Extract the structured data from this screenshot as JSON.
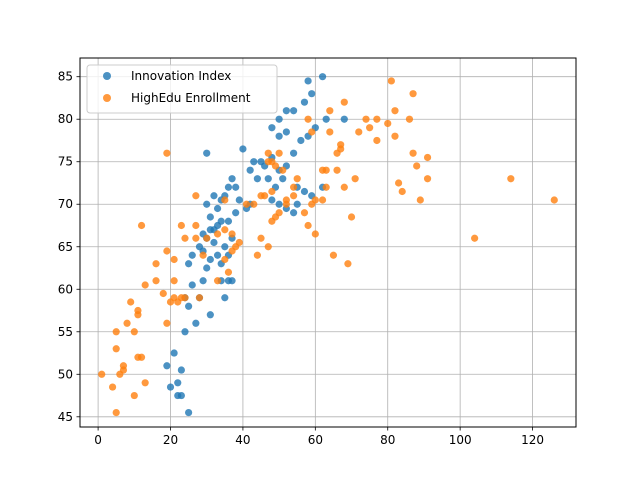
{
  "chart_data": {
    "type": "scatter",
    "title": "",
    "xlabel": "",
    "ylabel": "",
    "xlim": [
      -5,
      132
    ],
    "ylim": [
      43.8,
      87.2
    ],
    "xticks": [
      0,
      20,
      40,
      60,
      80,
      100,
      120
    ],
    "yticks": [
      45,
      50,
      55,
      60,
      65,
      70,
      75,
      80,
      85
    ],
    "grid": true,
    "legend_position": "top-left",
    "series": [
      {
        "name": "Innovation Index",
        "color": "#1f77b4",
        "points": [
          [
            20,
            48.5
          ],
          [
            21,
            52.5
          ],
          [
            19,
            51
          ],
          [
            23,
            50.5
          ],
          [
            22,
            47.5
          ],
          [
            25,
            45.5
          ],
          [
            24,
            55
          ],
          [
            27,
            56
          ],
          [
            25,
            58
          ],
          [
            24,
            59
          ],
          [
            26,
            60.5
          ],
          [
            31,
            57
          ],
          [
            29,
            61
          ],
          [
            28,
            59
          ],
          [
            30,
            62.5
          ],
          [
            31,
            63.5
          ],
          [
            33,
            64
          ],
          [
            35,
            59
          ],
          [
            34,
            61
          ],
          [
            34,
            63
          ],
          [
            36,
            61
          ],
          [
            37,
            61
          ],
          [
            26,
            64
          ],
          [
            25,
            63
          ],
          [
            29,
            64.5
          ],
          [
            28,
            65
          ],
          [
            32,
            65.5
          ],
          [
            36,
            64
          ],
          [
            37,
            66
          ],
          [
            35,
            65
          ],
          [
            29,
            66.5
          ],
          [
            30,
            66
          ],
          [
            31,
            67
          ],
          [
            32,
            67
          ],
          [
            33,
            67.5
          ],
          [
            34,
            68
          ],
          [
            36,
            68
          ],
          [
            38,
            69
          ],
          [
            33,
            69.5
          ],
          [
            30,
            70
          ],
          [
            31,
            68.5
          ],
          [
            32,
            71
          ],
          [
            34,
            70.5
          ],
          [
            35,
            71
          ],
          [
            36,
            72
          ],
          [
            37,
            73
          ],
          [
            38,
            72
          ],
          [
            39,
            70.5
          ],
          [
            41,
            69.5
          ],
          [
            42,
            70
          ],
          [
            40,
            76.5
          ],
          [
            42,
            74
          ],
          [
            43,
            75
          ],
          [
            45,
            75
          ],
          [
            44,
            73
          ],
          [
            46,
            74.5
          ],
          [
            48,
            75.5
          ],
          [
            50,
            74
          ],
          [
            47,
            73
          ],
          [
            49,
            72
          ],
          [
            51,
            73
          ],
          [
            52,
            74.5
          ],
          [
            55,
            72
          ],
          [
            57,
            71.5
          ],
          [
            59,
            71
          ],
          [
            62,
            72
          ],
          [
            50,
            70
          ],
          [
            52,
            69.5
          ],
          [
            54,
            69
          ],
          [
            55,
            70
          ],
          [
            30,
            76
          ],
          [
            48,
            70.5
          ],
          [
            50,
            78
          ],
          [
            48,
            79
          ],
          [
            52,
            78.5
          ],
          [
            54,
            76
          ],
          [
            56,
            77.5
          ],
          [
            58,
            78
          ],
          [
            60,
            79
          ],
          [
            63,
            80
          ],
          [
            50,
            80
          ],
          [
            52,
            81
          ],
          [
            54,
            81
          ],
          [
            57,
            82
          ],
          [
            59,
            83
          ],
          [
            62,
            85
          ],
          [
            58,
            84.5
          ],
          [
            68,
            80
          ],
          [
            22,
            49
          ],
          [
            23,
            47.5
          ]
        ]
      },
      {
        "name": "HighEdu Enrollment",
        "color": "#ff7f0e",
        "points": [
          [
            1,
            50
          ],
          [
            4,
            48.5
          ],
          [
            5,
            45.5
          ],
          [
            5,
            53
          ],
          [
            5,
            55
          ],
          [
            6,
            50
          ],
          [
            7,
            51
          ],
          [
            7,
            50.5
          ],
          [
            8,
            56
          ],
          [
            9,
            58.5
          ],
          [
            10,
            47.5
          ],
          [
            10,
            55
          ],
          [
            11,
            57
          ],
          [
            11,
            57.5
          ],
          [
            11,
            52
          ],
          [
            12,
            52
          ],
          [
            13,
            49
          ],
          [
            13,
            60.5
          ],
          [
            16,
            61
          ],
          [
            16,
            63
          ],
          [
            18,
            59.5
          ],
          [
            19,
            56
          ],
          [
            19,
            64.5
          ],
          [
            20,
            58.5
          ],
          [
            21,
            61
          ],
          [
            21,
            63.5
          ],
          [
            21,
            59
          ],
          [
            22,
            58.5
          ],
          [
            23,
            59
          ],
          [
            24,
            59
          ],
          [
            27,
            67.5
          ],
          [
            23,
            67.5
          ],
          [
            24,
            66
          ],
          [
            28,
            59
          ],
          [
            29,
            64
          ],
          [
            33,
            61
          ],
          [
            35,
            63.5
          ],
          [
            35,
            67
          ],
          [
            36,
            62
          ],
          [
            37,
            64.5
          ],
          [
            38,
            65
          ],
          [
            39,
            65.5
          ],
          [
            27,
            71
          ],
          [
            35,
            70.5
          ],
          [
            37,
            66.5
          ],
          [
            30,
            66
          ],
          [
            33,
            66.5
          ],
          [
            19,
            76
          ],
          [
            12,
            67.5
          ],
          [
            27,
            66
          ],
          [
            41,
            70
          ],
          [
            44,
            64
          ],
          [
            45,
            66
          ],
          [
            46,
            71
          ],
          [
            47,
            65
          ],
          [
            48,
            68
          ],
          [
            49,
            68.5
          ],
          [
            48,
            71.5
          ],
          [
            50,
            69
          ],
          [
            52,
            70
          ],
          [
            54,
            71
          ],
          [
            55,
            73
          ],
          [
            57,
            69
          ],
          [
            58,
            67.5
          ],
          [
            59,
            70
          ],
          [
            60,
            70.5
          ],
          [
            60,
            66.5
          ],
          [
            62,
            70.5
          ],
          [
            63,
            72
          ],
          [
            63,
            74
          ],
          [
            65,
            64
          ],
          [
            66,
            74
          ],
          [
            67,
            77
          ],
          [
            67,
            76.5
          ],
          [
            68,
            72
          ],
          [
            70,
            68.5
          ],
          [
            69,
            63
          ],
          [
            71,
            73
          ],
          [
            72,
            78.5
          ],
          [
            74,
            80
          ],
          [
            75,
            79
          ],
          [
            77,
            77.5
          ],
          [
            77,
            80
          ],
          [
            80,
            79.5
          ],
          [
            81,
            84.5
          ],
          [
            82,
            78
          ],
          [
            82,
            81
          ],
          [
            84,
            71.5
          ],
          [
            83,
            72.5
          ],
          [
            86,
            80
          ],
          [
            87,
            76
          ],
          [
            87,
            83
          ],
          [
            88,
            74.5
          ],
          [
            89,
            70.5
          ],
          [
            91,
            75.5
          ],
          [
            91,
            73
          ],
          [
            104,
            66
          ],
          [
            114,
            73
          ],
          [
            126,
            70.5
          ],
          [
            62,
            74
          ],
          [
            64,
            78.5
          ],
          [
            64,
            81
          ],
          [
            66,
            76
          ],
          [
            68,
            82
          ],
          [
            48,
            75
          ],
          [
            47,
            75
          ],
          [
            58,
            80
          ],
          [
            59,
            78.5
          ],
          [
            54,
            72
          ],
          [
            52,
            70.5
          ],
          [
            50,
            76
          ],
          [
            51,
            74
          ],
          [
            49,
            74.5
          ],
          [
            47,
            76
          ],
          [
            45,
            71
          ],
          [
            43,
            70
          ]
        ]
      }
    ]
  }
}
